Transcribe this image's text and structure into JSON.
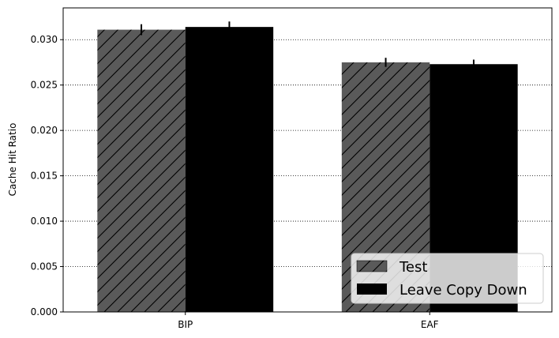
{
  "chart_data": {
    "type": "bar",
    "categories": [
      "BIP",
      "EAF"
    ],
    "series": [
      {
        "name": "Test",
        "values": [
          0.0311,
          0.0275
        ],
        "errors": [
          0.0006,
          0.0005
        ],
        "color": "#5a5a5a",
        "pattern": "hatch-diagonal"
      },
      {
        "name": "Leave Copy Down",
        "values": [
          0.0314,
          0.0273
        ],
        "errors": [
          0.0006,
          0.0005
        ],
        "color": "#000000",
        "pattern": "solid"
      }
    ],
    "title": "",
    "xlabel": "",
    "ylabel": "Cache Hit Ratio",
    "ylim": [
      0,
      0.0335
    ],
    "yticks": [
      "0.000",
      "0.005",
      "0.010",
      "0.015",
      "0.020",
      "0.025",
      "0.030"
    ],
    "grid": "y-dotted",
    "legend_position": "bottom-right"
  }
}
